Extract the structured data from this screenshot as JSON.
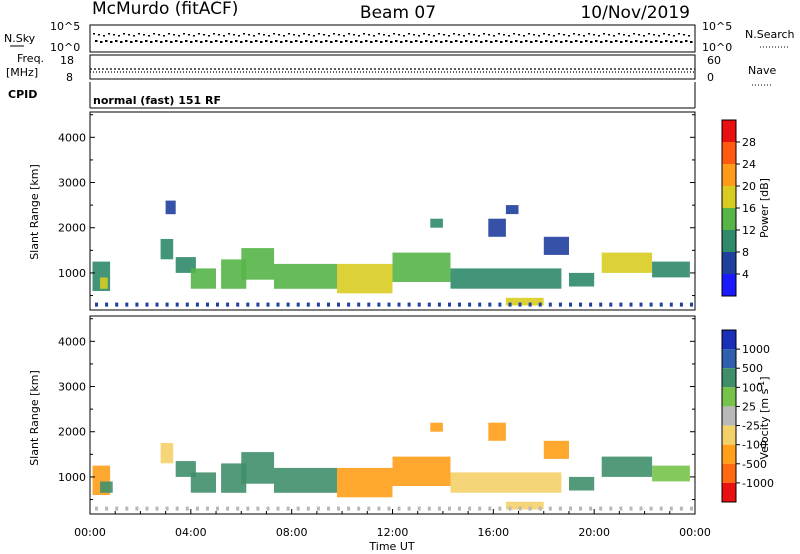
{
  "header": {
    "station": "McMurdo (fitACF)",
    "beam": "Beam 07",
    "date": "10/Nov/2019"
  },
  "summary_panels": {
    "nsky_label": "N.Sky",
    "nsearch_label": "N.Search",
    "noise_ticks_left": [
      "10^5",
      "10^0"
    ],
    "noise_ticks_right": [
      "10^5",
      "10^0"
    ],
    "freq_label": "Freq.",
    "freq_unit": "[MHz]",
    "freq_ticks": [
      "18",
      "8"
    ],
    "nave_label": "Nave",
    "nave_ticks": [
      "60",
      "0"
    ],
    "cpid_label": "CPID",
    "cpid_text": "normal (fast) 151 RF"
  },
  "colors": {
    "power_scale": [
      "#1a1aff",
      "#1f3f9f",
      "#2f8a6a",
      "#57b548",
      "#d8cc21",
      "#ff9a1a",
      "#ff5a10",
      "#e81010"
    ],
    "velocity_scale": [
      "#1a2fb8",
      "#2f5fae",
      "#3f8f6a",
      "#77c34a",
      "#b8b8b8",
      "#f4d068",
      "#ff9f1a",
      "#ff6a10",
      "#e81010"
    ]
  },
  "chart_data": [
    {
      "type": "heatmap",
      "panel": "power",
      "ylabel": "Slant Range [km]",
      "xlim": [
        0,
        24
      ],
      "ylim": [
        180,
        4560
      ],
      "yticks": [
        1000,
        2000,
        3000,
        4000
      ],
      "colorbar": {
        "label": "Power [dB]",
        "range": [
          0,
          32
        ],
        "ticks": [
          "4",
          "8",
          "12",
          "16",
          "20",
          "24",
          "28"
        ]
      },
      "patches": [
        {
          "t0": 0.1,
          "t1": 0.8,
          "r0": 600,
          "r1": 1250,
          "value": 9
        },
        {
          "t0": 0.4,
          "t1": 0.7,
          "r0": 650,
          "r1": 900,
          "value": 18
        },
        {
          "t0": 2.8,
          "t1": 3.3,
          "r0": 1300,
          "r1": 1750,
          "value": 8
        },
        {
          "t0": 3.0,
          "t1": 3.4,
          "r0": 2300,
          "r1": 2600,
          "value": 6
        },
        {
          "t0": 3.4,
          "t1": 4.2,
          "r0": 1000,
          "r1": 1350,
          "value": 8
        },
        {
          "t0": 4.0,
          "t1": 5.0,
          "r0": 650,
          "r1": 1100,
          "value": 12
        },
        {
          "t0": 5.2,
          "t1": 6.2,
          "r0": 650,
          "r1": 1300,
          "value": 15
        },
        {
          "t0": 6.0,
          "t1": 7.3,
          "r0": 850,
          "r1": 1550,
          "value": 14
        },
        {
          "t0": 7.3,
          "t1": 9.8,
          "r0": 650,
          "r1": 1200,
          "value": 12
        },
        {
          "t0": 9.8,
          "t1": 12.0,
          "r0": 550,
          "r1": 1200,
          "value": 18
        },
        {
          "t0": 12.0,
          "t1": 14.3,
          "r0": 800,
          "r1": 1450,
          "value": 13
        },
        {
          "t0": 13.5,
          "t1": 14.0,
          "r0": 2000,
          "r1": 2200,
          "value": 10
        },
        {
          "t0": 14.3,
          "t1": 18.7,
          "r0": 650,
          "r1": 1100,
          "value": 10
        },
        {
          "t0": 15.8,
          "t1": 16.5,
          "r0": 1800,
          "r1": 2200,
          "value": 7
        },
        {
          "t0": 16.5,
          "t1": 17.0,
          "r0": 2300,
          "r1": 2500,
          "value": 6
        },
        {
          "t0": 16.5,
          "t1": 18.0,
          "r0": 280,
          "r1": 450,
          "value": 16
        },
        {
          "t0": 18.0,
          "t1": 19.0,
          "r0": 1400,
          "r1": 1800,
          "value": 7
        },
        {
          "t0": 19.0,
          "t1": 20.0,
          "r0": 700,
          "r1": 1000,
          "value": 8
        },
        {
          "t0": 20.3,
          "t1": 22.3,
          "r0": 1000,
          "r1": 1450,
          "value": 17
        },
        {
          "t0": 22.3,
          "t1": 23.8,
          "r0": 900,
          "r1": 1250,
          "value": 8
        }
      ]
    },
    {
      "type": "heatmap",
      "panel": "velocity",
      "ylabel": "Slant Range [km]",
      "xlabel": "Time UT",
      "xlim": [
        0,
        24
      ],
      "ylim": [
        180,
        4560
      ],
      "xticks": [
        "00:00",
        "04:00",
        "08:00",
        "12:00",
        "16:00",
        "20:00",
        "00:00"
      ],
      "yticks": [
        1000,
        2000,
        3000,
        4000
      ],
      "colorbar": {
        "label": "Velocity [m s",
        "label_sup": "-1",
        "label_end": "]",
        "ticks": [
          "1000",
          "500",
          "100",
          "25",
          "-25",
          "-100",
          "-500",
          "-1000"
        ]
      },
      "patches": [
        {
          "t0": 0.1,
          "t1": 0.8,
          "r0": 600,
          "r1": 1250,
          "value": -120
        },
        {
          "t0": 0.4,
          "t1": 0.9,
          "r0": 650,
          "r1": 900,
          "value": 200
        },
        {
          "t0": 2.8,
          "t1": 3.3,
          "r0": 1300,
          "r1": 1750,
          "value": -80
        },
        {
          "t0": 3.4,
          "t1": 4.2,
          "r0": 1000,
          "r1": 1350,
          "value": 200
        },
        {
          "t0": 4.0,
          "t1": 5.0,
          "r0": 650,
          "r1": 1100,
          "value": 250
        },
        {
          "t0": 5.2,
          "t1": 6.2,
          "r0": 650,
          "r1": 1300,
          "value": 220
        },
        {
          "t0": 6.0,
          "t1": 7.3,
          "r0": 850,
          "r1": 1550,
          "value": 300
        },
        {
          "t0": 7.3,
          "t1": 9.8,
          "r0": 650,
          "r1": 1200,
          "value": 260
        },
        {
          "t0": 9.8,
          "t1": 12.0,
          "r0": 550,
          "r1": 1200,
          "value": -180
        },
        {
          "t0": 12.0,
          "t1": 14.3,
          "r0": 800,
          "r1": 1450,
          "value": -200
        },
        {
          "t0": 13.5,
          "t1": 14.0,
          "r0": 2000,
          "r1": 2200,
          "value": -150
        },
        {
          "t0": 14.3,
          "t1": 18.7,
          "r0": 650,
          "r1": 1100,
          "value": -100
        },
        {
          "t0": 15.8,
          "t1": 16.5,
          "r0": 1800,
          "r1": 2200,
          "value": -200
        },
        {
          "t0": 16.5,
          "t1": 18.0,
          "r0": 280,
          "r1": 450,
          "value": -60
        },
        {
          "t0": 18.0,
          "t1": 19.0,
          "r0": 1400,
          "r1": 1800,
          "value": -400
        },
        {
          "t0": 19.0,
          "t1": 20.0,
          "r0": 700,
          "r1": 1000,
          "value": 120
        },
        {
          "t0": 20.3,
          "t1": 22.3,
          "r0": 1000,
          "r1": 1450,
          "value": 300
        },
        {
          "t0": 22.3,
          "t1": 23.8,
          "r0": 900,
          "r1": 1250,
          "value": 60
        }
      ]
    }
  ]
}
